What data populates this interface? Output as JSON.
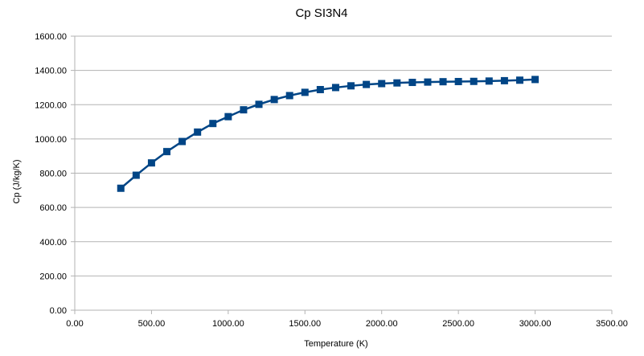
{
  "chart_data": {
    "type": "line",
    "title": "Cp SI3N4",
    "xlabel": "Temperature (K)",
    "ylabel": "Cp (J/kg/K)",
    "xlim": [
      0,
      3500
    ],
    "ylim": [
      0,
      1600
    ],
    "x_ticks": [
      "0.00",
      "500.00",
      "1000.00",
      "1500.00",
      "2000.00",
      "2500.00",
      "3000.00",
      "3500.00"
    ],
    "y_ticks": [
      "0.00",
      "200.00",
      "400.00",
      "600.00",
      "800.00",
      "1000.00",
      "1200.00",
      "1400.00",
      "1600.00"
    ],
    "x_tick_values": [
      0,
      500,
      1000,
      1500,
      2000,
      2500,
      3000,
      3500
    ],
    "y_tick_values": [
      0,
      200,
      400,
      600,
      800,
      1000,
      1200,
      1400,
      1600
    ],
    "grid": "horizontal",
    "legend": "none",
    "series": [
      {
        "color": "#004586",
        "marker": "square",
        "x": [
          300,
          400,
          500,
          600,
          700,
          800,
          900,
          1000,
          1100,
          1200,
          1300,
          1400,
          1500,
          1600,
          1700,
          1800,
          1900,
          2000,
          2100,
          2200,
          2300,
          2400,
          2500,
          2600,
          2700,
          2800,
          2900,
          3000
        ],
        "y": [
          712,
          788,
          860,
          926,
          985,
          1040,
          1090,
          1130,
          1170,
          1202,
          1230,
          1253,
          1272,
          1288,
          1300,
          1310,
          1318,
          1323,
          1327,
          1330,
          1332,
          1334,
          1335,
          1336,
          1338,
          1340,
          1343,
          1347
        ]
      }
    ]
  }
}
